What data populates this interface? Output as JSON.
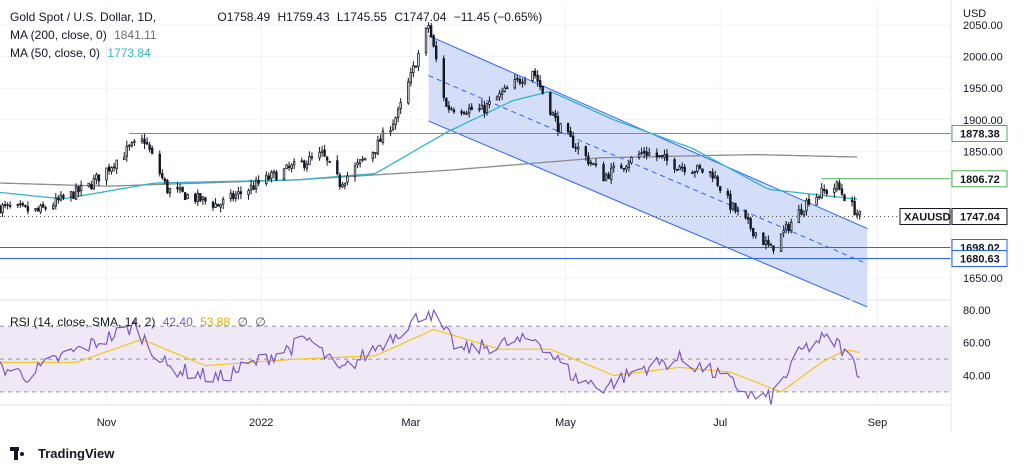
{
  "header": {
    "symbol_title": "Gold Spot / U.S. Dollar, 1D,",
    "ohlc": {
      "open_label": "O",
      "open": "1758.49",
      "high_label": "H",
      "high": "1759.43",
      "low_label": "L",
      "low": "1745.55",
      "close_label": "C",
      "close": "1747.04",
      "change": "−11.45 (−0.65%)"
    },
    "ma200_label": "MA (200, close, 0)",
    "ma200_value": "1841.11",
    "ma50_label": "MA (50, close, 0)",
    "ma50_value": "1773.84"
  },
  "rsi_legend": {
    "label": "RSI (14, close, SMA, 14, 2)",
    "rsi_value": "42.40",
    "sma_value": "53.88",
    "extra1": "∅",
    "extra2": "∅"
  },
  "footer": {
    "brand": "TradingView"
  },
  "colors": {
    "up": "#131722",
    "down": "#131722",
    "ma200": "#8c8c8c",
    "ma50": "#2fb5c9",
    "channel_fill": "#c5d3f5",
    "channel_line": "#2962ff",
    "hline_green": "#4caf50",
    "hline_blue": "#2962ff",
    "rsi_line": "#7e57c2",
    "rsi_sma": "#f5c518",
    "rsi_band": "#efe9f7"
  },
  "chart_data": [
    {
      "type": "candlestick",
      "title": "Gold Spot / U.S. Dollar, 1D",
      "y_axis_label": "USD",
      "ylim": [
        1615,
        2080
      ],
      "y_ticks": [
        "2050.00",
        "2000.00",
        "1950.00",
        "1900.00",
        "1850.00",
        "1650.00"
      ],
      "x_ticks": [
        "Nov",
        "2022",
        "Mar",
        "May",
        "Jul",
        "Sep"
      ],
      "x_range_dates": [
        "2021-09-20",
        "2022-09-30"
      ],
      "x_tick_dates": [
        "2021-11-01",
        "2022-01-01",
        "2022-03-01",
        "2022-05-01",
        "2022-07-01",
        "2022-09-01"
      ],
      "last_price": {
        "label": "XAUUSD",
        "value": 1747.04
      },
      "price_path": [
        [
          "2021-09-20",
          1762
        ],
        [
          "2021-10-05",
          1755
        ],
        [
          "2021-10-25",
          1795
        ],
        [
          "2021-11-10",
          1855
        ],
        [
          "2021-11-16",
          1868
        ],
        [
          "2021-11-25",
          1790
        ],
        [
          "2021-12-15",
          1765
        ],
        [
          "2022-01-05",
          1810
        ],
        [
          "2022-01-25",
          1845
        ],
        [
          "2022-02-01",
          1800
        ],
        [
          "2022-02-15",
          1855
        ],
        [
          "2022-02-24",
          1910
        ],
        [
          "2022-03-08",
          2050
        ],
        [
          "2022-03-15",
          1920
        ],
        [
          "2022-03-29",
          1915
        ],
        [
          "2022-04-18",
          1980
        ],
        [
          "2022-04-28",
          1890
        ],
        [
          "2022-05-16",
          1810
        ],
        [
          "2022-06-01",
          1850
        ],
        [
          "2022-06-13",
          1830
        ],
        [
          "2022-06-28",
          1815
        ],
        [
          "2022-07-05",
          1765
        ],
        [
          "2022-07-21",
          1695
        ],
        [
          "2022-08-05",
          1775
        ],
        [
          "2022-08-16",
          1795
        ],
        [
          "2022-08-25",
          1747
        ]
      ],
      "ma200_path": [
        [
          "2021-09-20",
          1800
        ],
        [
          "2021-11-01",
          1795
        ],
        [
          "2022-01-15",
          1805
        ],
        [
          "2022-03-15",
          1820
        ],
        [
          "2022-05-15",
          1840
        ],
        [
          "2022-07-15",
          1845
        ],
        [
          "2022-08-25",
          1841
        ]
      ],
      "ma50_path": [
        [
          "2021-09-20",
          1785
        ],
        [
          "2021-10-15",
          1775
        ],
        [
          "2021-11-20",
          1800
        ],
        [
          "2022-01-15",
          1805
        ],
        [
          "2022-02-15",
          1815
        ],
        [
          "2022-03-15",
          1880
        ],
        [
          "2022-04-10",
          1930
        ],
        [
          "2022-04-25",
          1945
        ],
        [
          "2022-05-20",
          1900
        ],
        [
          "2022-06-20",
          1855
        ],
        [
          "2022-07-20",
          1790
        ],
        [
          "2022-08-25",
          1774
        ]
      ],
      "channel": {
        "upper": [
          [
            "2022-03-08",
            2033
          ],
          [
            "2022-08-28",
            1728
          ]
        ],
        "middle": [
          [
            "2022-03-08",
            1970
          ],
          [
            "2022-08-28",
            1672
          ]
        ],
        "lower": [
          [
            "2022-03-08",
            1898
          ],
          [
            "2022-08-28",
            1604
          ]
        ]
      },
      "horizontal_levels": [
        {
          "value": 1878.38,
          "label": "1878.38",
          "color": "green",
          "from": "2021-11-10"
        },
        {
          "value": 1806.72,
          "label": "1806.72",
          "color": "green",
          "from": "2022-08-10"
        },
        {
          "value": 1698.02,
          "label": "1698.02",
          "color": "blue",
          "from": "2021-09-20"
        },
        {
          "value": 1680.63,
          "label": "1680.63",
          "color": "blue",
          "from": "2021-09-20"
        }
      ]
    },
    {
      "type": "line",
      "title": "RSI (14, close, SMA, 14, 2)",
      "ylim": [
        22,
        86
      ],
      "y_ticks": [
        "80.00",
        "60.00",
        "40.00"
      ],
      "bands": {
        "upper": 70,
        "middle": 50,
        "lower": 30
      },
      "series": [
        {
          "name": "RSI",
          "points": [
            [
              "2021-09-20",
              45
            ],
            [
              "2021-10-01",
              40
            ],
            [
              "2021-10-15",
              52
            ],
            [
              "2021-10-28",
              60
            ],
            [
              "2021-11-12",
              70
            ],
            [
              "2021-11-25",
              45
            ],
            [
              "2021-12-15",
              38
            ],
            [
              "2022-01-05",
              52
            ],
            [
              "2022-01-20",
              62
            ],
            [
              "2022-02-01",
              42
            ],
            [
              "2022-02-20",
              62
            ],
            [
              "2022-03-08",
              80
            ],
            [
              "2022-03-20",
              55
            ],
            [
              "2022-04-10",
              60
            ],
            [
              "2022-04-20",
              62
            ],
            [
              "2022-05-05",
              38
            ],
            [
              "2022-05-16",
              33
            ],
            [
              "2022-06-01",
              45
            ],
            [
              "2022-06-15",
              50
            ],
            [
              "2022-07-01",
              40
            ],
            [
              "2022-07-14",
              27
            ],
            [
              "2022-07-21",
              26
            ],
            [
              "2022-08-02",
              55
            ],
            [
              "2022-08-10",
              62
            ],
            [
              "2022-08-16",
              60
            ],
            [
              "2022-08-25",
              42.4
            ]
          ]
        },
        {
          "name": "RSI-based MA",
          "points": [
            [
              "2021-09-20",
              48
            ],
            [
              "2021-10-20",
              48
            ],
            [
              "2021-11-15",
              62
            ],
            [
              "2021-12-10",
              46
            ],
            [
              "2022-01-15",
              50
            ],
            [
              "2022-02-15",
              52
            ],
            [
              "2022-03-10",
              68
            ],
            [
              "2022-04-05",
              56
            ],
            [
              "2022-04-25",
              56
            ],
            [
              "2022-05-20",
              40
            ],
            [
              "2022-06-15",
              45
            ],
            [
              "2022-07-05",
              42
            ],
            [
              "2022-07-25",
              30
            ],
            [
              "2022-08-10",
              48
            ],
            [
              "2022-08-20",
              56
            ],
            [
              "2022-08-25",
              53.88
            ]
          ]
        }
      ]
    }
  ]
}
